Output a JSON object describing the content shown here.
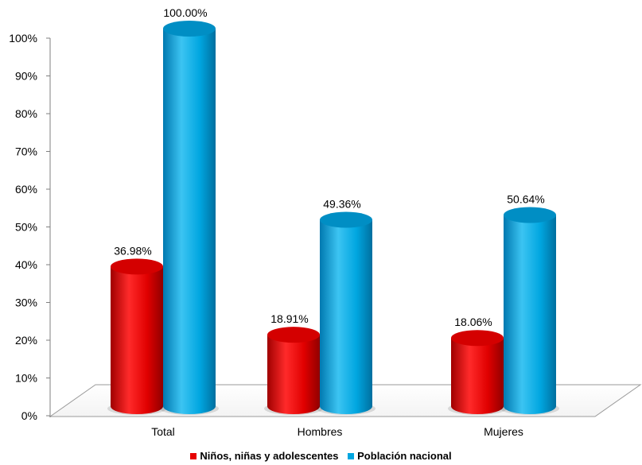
{
  "chart_data": {
    "type": "bar",
    "title": "",
    "xlabel": "",
    "ylabel": "",
    "categories": [
      "Total",
      "Hombres",
      "Mujeres"
    ],
    "series": [
      {
        "name": "Niños, niñas y adolescentes",
        "color": "#e60000",
        "values": [
          36.98,
          18.91,
          18.06
        ],
        "labels": [
          "36.98%",
          "18.91%",
          "18.06%"
        ]
      },
      {
        "name": "Población nacional",
        "color": "#00a6e0",
        "values": [
          100.0,
          49.36,
          50.64
        ],
        "labels": [
          "100.00%",
          "49.36%",
          "50.64%"
        ]
      }
    ],
    "ylim": [
      0,
      100
    ],
    "yticks": [
      "0%",
      "10%",
      "20%",
      "30%",
      "40%",
      "50%",
      "60%",
      "70%",
      "80%",
      "90%",
      "100%"
    ],
    "grid": false,
    "legend_position": "bottom",
    "style": "3d-cylinder"
  }
}
